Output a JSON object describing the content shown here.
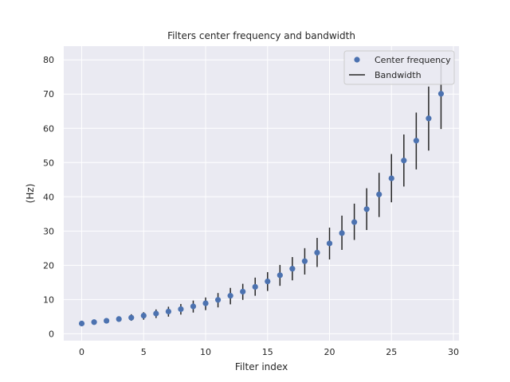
{
  "chart_data": {
    "type": "scatter",
    "title": "Filters center frequency and bandwidth",
    "xlabel": "Filter index",
    "ylabel": "(Hz)",
    "xlim": [
      -1.45,
      30.45
    ],
    "ylim": [
      -2,
      84
    ],
    "xticks": [
      0,
      5,
      10,
      15,
      20,
      25,
      30
    ],
    "yticks": [
      0,
      10,
      20,
      30,
      40,
      50,
      60,
      70,
      80
    ],
    "grid": true,
    "legend": {
      "placement": "top-right",
      "entries": [
        {
          "label": "Center frequency",
          "marker": "circle"
        },
        {
          "label": "Bandwidth",
          "marker": "line"
        }
      ]
    },
    "x": [
      0,
      1,
      2,
      3,
      4,
      5,
      6,
      7,
      8,
      9,
      10,
      11,
      12,
      13,
      14,
      15,
      16,
      17,
      18,
      19,
      20,
      21,
      22,
      23,
      24,
      25,
      26,
      27,
      28,
      29
    ],
    "series": [
      {
        "name": "Center frequency",
        "values": [
          3.0,
          3.4,
          3.8,
          4.3,
          4.7,
          5.3,
          5.9,
          6.5,
          7.2,
          8.0,
          8.9,
          9.9,
          11.1,
          12.3,
          13.7,
          15.3,
          17.1,
          19.0,
          21.2,
          23.7,
          26.4,
          29.4,
          32.6,
          36.4,
          40.7,
          45.4,
          50.6,
          56.4,
          62.9,
          70.1
        ],
        "color": "#4c72b0"
      },
      {
        "name": "Bandwidth",
        "low": [
          2.6,
          2.9,
          3.1,
          3.5,
          3.8,
          4.1,
          4.6,
          5.0,
          5.6,
          6.2,
          6.9,
          7.7,
          8.6,
          9.9,
          11.1,
          12.5,
          14.0,
          15.6,
          17.3,
          19.5,
          21.7,
          24.5,
          27.4,
          30.3,
          34.1,
          38.4,
          43.0,
          48.0,
          53.5,
          59.8
        ],
        "high": [
          3.4,
          3.9,
          4.5,
          5.1,
          5.7,
          6.3,
          7.1,
          7.9,
          8.7,
          9.7,
          10.6,
          11.9,
          13.4,
          14.6,
          16.4,
          18.0,
          20.1,
          22.4,
          25.0,
          28.0,
          31.0,
          34.5,
          38.0,
          42.5,
          47.0,
          52.5,
          58.2,
          64.6,
          72.2,
          80.0
        ],
        "color": "#262626"
      }
    ],
    "colors": {
      "plot_background": "#eaeaf2",
      "grid": "#ffffff",
      "text": "#262626",
      "legend_background": "#eaeaf2",
      "legend_border": "#cccccc"
    }
  }
}
